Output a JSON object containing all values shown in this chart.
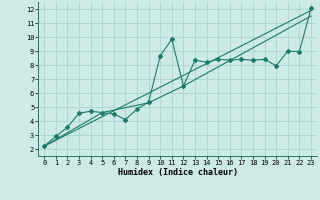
{
  "xlabel": "Humidex (Indice chaleur)",
  "bg_color": "#ceeae6",
  "grid_color": "#a8d4cf",
  "line_color": "#1a7a6e",
  "xlim": [
    -0.5,
    23.5
  ],
  "ylim": [
    1.5,
    12.5
  ],
  "xticks": [
    0,
    1,
    2,
    3,
    4,
    5,
    6,
    7,
    8,
    9,
    10,
    11,
    12,
    13,
    14,
    15,
    16,
    17,
    18,
    19,
    20,
    21,
    22,
    23
  ],
  "yticks": [
    2,
    3,
    4,
    5,
    6,
    7,
    8,
    9,
    10,
    11,
    12
  ],
  "line1_x": [
    0,
    1,
    2,
    3,
    4,
    5,
    6,
    7,
    8,
    9,
    10,
    11,
    12,
    13,
    14,
    15,
    16,
    17,
    18,
    19,
    20,
    21,
    22,
    23
  ],
  "line1_y": [
    2.2,
    2.9,
    3.55,
    4.55,
    4.7,
    4.6,
    4.5,
    4.1,
    4.85,
    5.35,
    8.65,
    9.85,
    6.5,
    8.35,
    8.2,
    8.4,
    8.35,
    8.4,
    8.35,
    8.4,
    7.95,
    9.0,
    8.95,
    12.05
  ],
  "line2_x": [
    0,
    23
  ],
  "line2_y": [
    2.2,
    11.9
  ],
  "line3_x": [
    0,
    5,
    9,
    12,
    23
  ],
  "line3_y": [
    2.2,
    4.6,
    5.3,
    6.5,
    11.5
  ]
}
